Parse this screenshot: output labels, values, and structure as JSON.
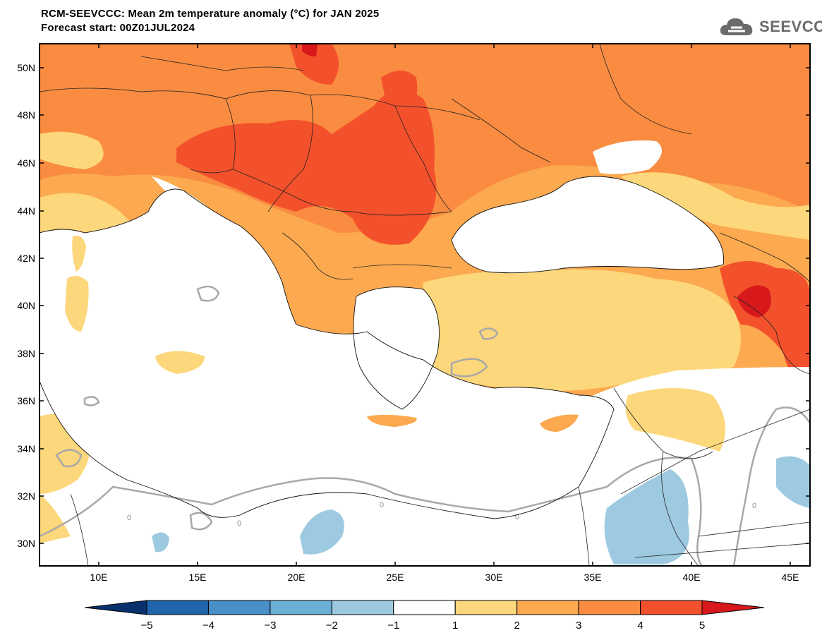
{
  "header": {
    "title": "RCM-SEEVCCC: Mean 2m temperature anomaly (°C) for JAN 2025",
    "subtitle": "Forecast start: 00Z01JUL2024"
  },
  "logo": {
    "text": "SEEVCCC",
    "icon": "cloud-icon"
  },
  "map": {
    "lat_labels": [
      "50N",
      "48N",
      "46N",
      "44N",
      "42N",
      "40N",
      "38N",
      "36N",
      "34N",
      "32N",
      "30N"
    ],
    "lon_labels": [
      "10E",
      "15E",
      "20E",
      "25E",
      "30E",
      "35E",
      "40E",
      "45E"
    ],
    "contour_labels": [
      "0",
      "0",
      "0",
      "0",
      "0"
    ]
  },
  "colorbar": {
    "ticks": [
      "−5",
      "−4",
      "−3",
      "−2",
      "−1",
      "1",
      "2",
      "3",
      "4",
      "5"
    ],
    "colors": [
      "#08306b",
      "#2166ac",
      "#4a90c8",
      "#6baed6",
      "#9ecae1",
      "#ffffff",
      "#fdd77b",
      "#fca94f",
      "#f98c40",
      "#f3512b",
      "#d7191c"
    ]
  }
}
